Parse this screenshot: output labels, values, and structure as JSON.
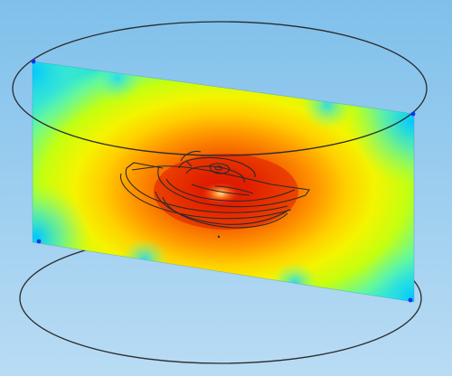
{
  "view": {
    "type": "3d-field-plot",
    "colors": {
      "background_top": "#7fc0eb",
      "background_bottom": "#b9dcf4",
      "field_low": "#00c8ff",
      "field_mid_low": "#aaff00",
      "field_mid": "#ffee00",
      "field_mid_high": "#ff8800",
      "field_high": "#d81200",
      "field_peak": "#ffd070",
      "geometry_edge": "#2a2a2a",
      "vertex_marker": "#1133ee"
    },
    "geometry": {
      "outer_domain": "cylinder",
      "slice": "vertical-plane-section",
      "object": "curved-coil-structure"
    }
  }
}
